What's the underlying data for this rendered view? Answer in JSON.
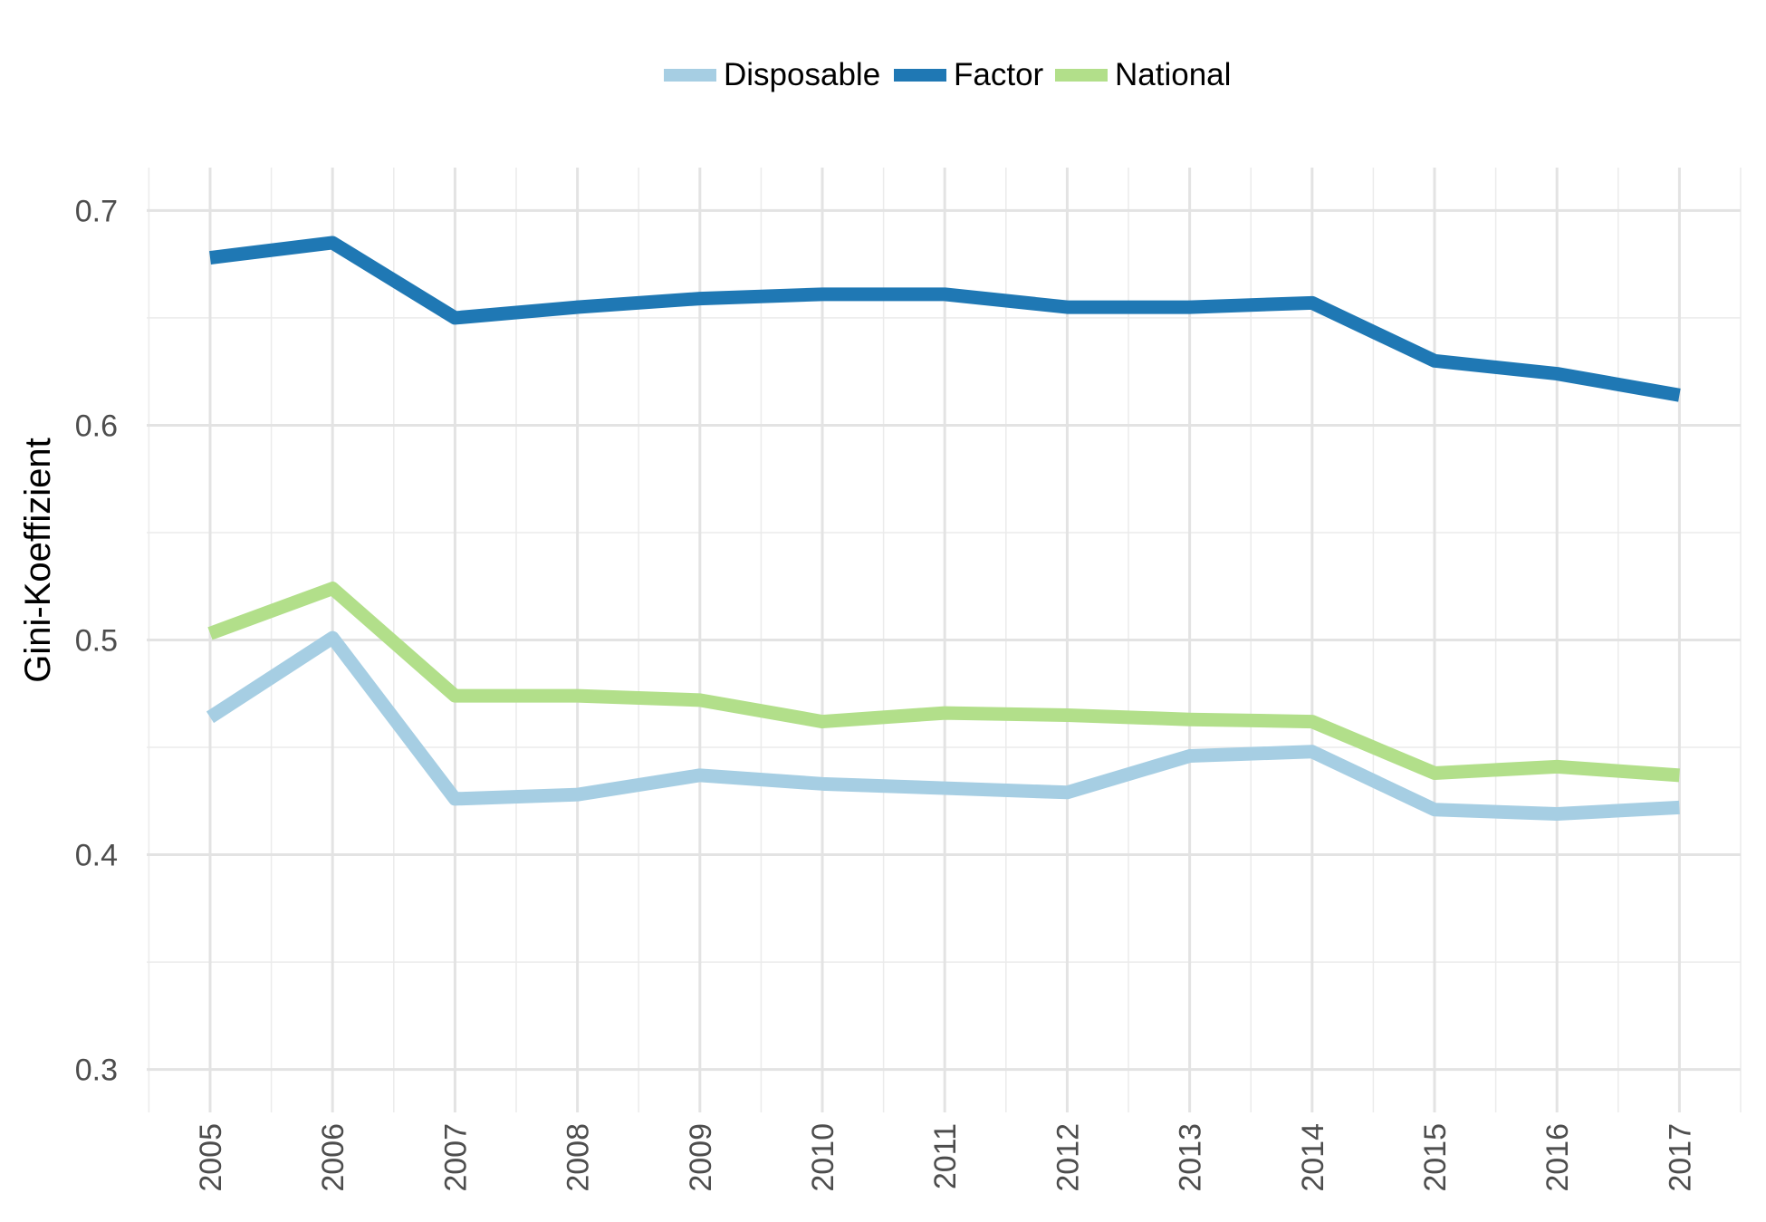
{
  "chart_data": {
    "type": "line",
    "title": "",
    "xlabel": "",
    "ylabel": "Gini-Koeffizient",
    "x": [
      "2005",
      "2006",
      "2007",
      "2008",
      "2009",
      "2010",
      "2011",
      "2012",
      "2013",
      "2014",
      "2015",
      "2016",
      "2017"
    ],
    "ylim": [
      0.28,
      0.72
    ],
    "y_ticks": [
      "0.3",
      "0.4",
      "0.5",
      "0.6",
      "0.7"
    ],
    "grid": true,
    "legend_position": "top",
    "series": [
      {
        "name": "Disposable",
        "color": "#a6cee3",
        "values": [
          0.464,
          0.501,
          0.426,
          0.428,
          0.437,
          0.433,
          0.431,
          0.429,
          0.446,
          0.448,
          0.421,
          0.419,
          0.422
        ]
      },
      {
        "name": "Factor",
        "color": "#1f78b4",
        "values": [
          0.678,
          0.685,
          0.65,
          0.655,
          0.659,
          0.661,
          0.661,
          0.655,
          0.655,
          0.657,
          0.63,
          0.624,
          0.614
        ]
      },
      {
        "name": "National",
        "color": "#b2df8a",
        "values": [
          0.503,
          0.524,
          0.474,
          0.474,
          0.472,
          0.462,
          0.466,
          0.465,
          0.463,
          0.462,
          0.438,
          0.441,
          0.437
        ]
      }
    ]
  }
}
